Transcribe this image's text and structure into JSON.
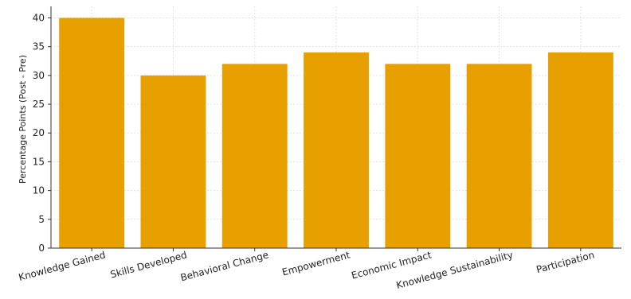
{
  "chart_data": {
    "type": "bar",
    "title": "",
    "xlabel": "",
    "ylabel": "Percentage Points (Post - Pre)",
    "categories": [
      "Knowledge Gained",
      "Skills Developed",
      "Behavioral Change",
      "Empowerment",
      "Economic Impact",
      "Knowledge Sustainability",
      "Participation"
    ],
    "values": [
      40,
      30,
      32,
      34,
      32,
      32,
      34
    ],
    "ylim": [
      0,
      42
    ],
    "yticks": [
      0,
      5,
      10,
      15,
      20,
      25,
      30,
      35,
      40
    ],
    "grid": true,
    "bar_color": "#e8a000"
  }
}
